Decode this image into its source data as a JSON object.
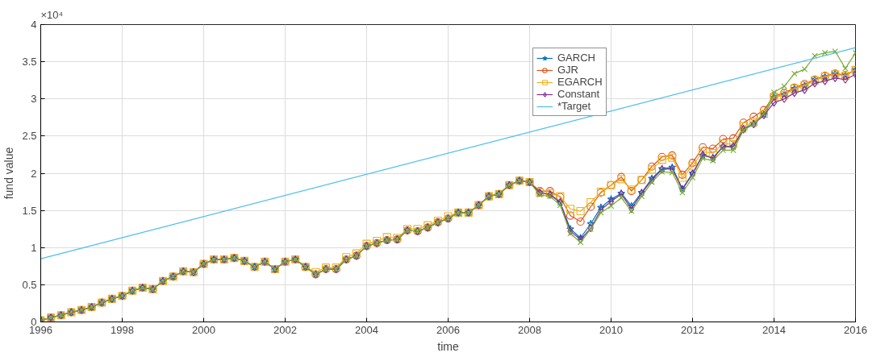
{
  "chart_data": {
    "type": "line",
    "xlabel": "time",
    "ylabel": "fund value",
    "annotations": [
      "×10⁴"
    ],
    "x": [
      1996,
      1996.25,
      1996.5,
      1996.75,
      1997,
      1997.25,
      1997.5,
      1997.75,
      1998,
      1998.25,
      1998.5,
      1998.75,
      1999,
      1999.25,
      1999.5,
      1999.75,
      2000,
      2000.25,
      2000.5,
      2000.75,
      2001,
      2001.25,
      2001.5,
      2001.75,
      2002,
      2002.25,
      2002.5,
      2002.75,
      2003,
      2003.25,
      2003.5,
      2003.75,
      2004,
      2004.25,
      2004.5,
      2004.75,
      2005,
      2005.25,
      2005.5,
      2005.75,
      2006,
      2006.25,
      2006.5,
      2006.75,
      2007,
      2007.25,
      2007.5,
      2007.75,
      2008,
      2008.25,
      2008.5,
      2008.75,
      2009,
      2009.25,
      2009.5,
      2009.75,
      2010,
      2010.25,
      2010.5,
      2010.75,
      2011,
      2011.25,
      2011.5,
      2011.75,
      2012,
      2012.25,
      2012.5,
      2012.75,
      2013,
      2013.25,
      2013.5,
      2013.75,
      2014,
      2014.25,
      2014.5,
      2014.75,
      2015,
      2015.25,
      2015.5,
      2015.75,
      2016
    ],
    "series": [
      {
        "name": "GARCH",
        "color": "#0072bd",
        "marker": "star",
        "values": [
          0.02,
          0.06,
          0.09,
          0.13,
          0.16,
          0.2,
          0.26,
          0.31,
          0.35,
          0.42,
          0.46,
          0.44,
          0.55,
          0.61,
          0.68,
          0.67,
          0.78,
          0.84,
          0.84,
          0.86,
          0.82,
          0.74,
          0.81,
          0.71,
          0.81,
          0.84,
          0.74,
          0.64,
          0.71,
          0.71,
          0.84,
          0.89,
          1.02,
          1.06,
          1.1,
          1.11,
          1.23,
          1.22,
          1.27,
          1.34,
          1.39,
          1.47,
          1.47,
          1.57,
          1.69,
          1.72,
          1.84,
          1.9,
          1.88,
          1.74,
          1.72,
          1.61,
          1.25,
          1.13,
          1.32,
          1.54,
          1.65,
          1.73,
          1.56,
          1.74,
          1.93,
          2.06,
          2.08,
          1.79,
          2,
          2.24,
          2.21,
          2.36,
          2.36,
          2.6,
          2.67,
          2.79,
          3.02,
          3.06,
          3.14,
          3.18,
          3.26,
          3.3,
          3.34,
          3.32,
          3.39
        ]
      },
      {
        "name": "GJR",
        "color": "#d95319",
        "marker": "circle",
        "values": [
          0.02,
          0.06,
          0.09,
          0.13,
          0.16,
          0.2,
          0.26,
          0.31,
          0.35,
          0.42,
          0.46,
          0.44,
          0.55,
          0.61,
          0.68,
          0.67,
          0.78,
          0.84,
          0.84,
          0.86,
          0.82,
          0.74,
          0.81,
          0.71,
          0.81,
          0.84,
          0.74,
          0.64,
          0.71,
          0.71,
          0.84,
          0.89,
          1.02,
          1.06,
          1.1,
          1.11,
          1.23,
          1.22,
          1.27,
          1.34,
          1.39,
          1.47,
          1.47,
          1.57,
          1.69,
          1.72,
          1.84,
          1.9,
          1.88,
          1.76,
          1.76,
          1.68,
          1.43,
          1.35,
          1.55,
          1.74,
          1.84,
          1.95,
          1.76,
          1.91,
          2.09,
          2.22,
          2.24,
          1.98,
          2.14,
          2.35,
          2.33,
          2.46,
          2.47,
          2.68,
          2.76,
          2.85,
          3.04,
          3.08,
          3.15,
          3.2,
          3.26,
          3.31,
          3.34,
          3.32,
          3.39
        ]
      },
      {
        "name": "EGARCH",
        "color": "#edb120",
        "marker": "square",
        "values": [
          0.02,
          0.06,
          0.09,
          0.13,
          0.16,
          0.2,
          0.26,
          0.31,
          0.35,
          0.42,
          0.46,
          0.44,
          0.55,
          0.61,
          0.68,
          0.67,
          0.78,
          0.84,
          0.84,
          0.86,
          0.82,
          0.74,
          0.81,
          0.71,
          0.81,
          0.84,
          0.74,
          0.67,
          0.73,
          0.73,
          0.87,
          0.92,
          1.05,
          1.09,
          1.14,
          1.13,
          1.25,
          1.25,
          1.3,
          1.36,
          1.42,
          1.47,
          1.47,
          1.57,
          1.69,
          1.72,
          1.84,
          1.9,
          1.88,
          1.74,
          1.73,
          1.69,
          1.52,
          1.49,
          1.61,
          1.75,
          1.84,
          1.92,
          1.78,
          1.91,
          2.05,
          2.18,
          2.21,
          1.94,
          2.1,
          2.29,
          2.27,
          2.4,
          2.39,
          2.63,
          2.69,
          2.8,
          3.03,
          3.05,
          3.14,
          3.18,
          3.25,
          3.3,
          3.33,
          3.31,
          3.39
        ]
      },
      {
        "name": "Constant",
        "color": "#7e2f8e",
        "marker": "diamond",
        "values": [
          0.02,
          0.06,
          0.09,
          0.13,
          0.16,
          0.2,
          0.26,
          0.31,
          0.35,
          0.42,
          0.46,
          0.44,
          0.55,
          0.61,
          0.68,
          0.67,
          0.78,
          0.84,
          0.84,
          0.86,
          0.82,
          0.74,
          0.81,
          0.71,
          0.81,
          0.84,
          0.74,
          0.64,
          0.71,
          0.71,
          0.84,
          0.89,
          1.02,
          1.06,
          1.1,
          1.11,
          1.23,
          1.22,
          1.27,
          1.34,
          1.39,
          1.47,
          1.47,
          1.57,
          1.69,
          1.72,
          1.84,
          1.9,
          1.88,
          1.74,
          1.71,
          1.61,
          1.22,
          1.11,
          1.26,
          1.51,
          1.62,
          1.72,
          1.52,
          1.73,
          1.91,
          2.05,
          2.06,
          1.78,
          1.99,
          2.25,
          2.2,
          2.36,
          2.36,
          2.59,
          2.66,
          2.78,
          2.95,
          3,
          3.08,
          3.12,
          3.21,
          3.24,
          3.28,
          3.26,
          3.33
        ]
      },
      {
        "color": "#77ac30",
        "marker": "cross",
        "values": [
          0.02,
          0.06,
          0.09,
          0.13,
          0.16,
          0.2,
          0.26,
          0.31,
          0.35,
          0.42,
          0.46,
          0.44,
          0.55,
          0.61,
          0.68,
          0.67,
          0.78,
          0.84,
          0.84,
          0.86,
          0.82,
          0.74,
          0.81,
          0.71,
          0.81,
          0.84,
          0.74,
          0.64,
          0.71,
          0.71,
          0.84,
          0.89,
          1.02,
          1.06,
          1.1,
          1.11,
          1.23,
          1.22,
          1.27,
          1.34,
          1.39,
          1.47,
          1.47,
          1.57,
          1.69,
          1.72,
          1.84,
          1.9,
          1.88,
          1.71,
          1.69,
          1.57,
          1.19,
          1.07,
          1.25,
          1.47,
          1.56,
          1.67,
          1.49,
          1.69,
          1.88,
          2.02,
          2.01,
          1.74,
          1.94,
          2.2,
          2.17,
          2.31,
          2.31,
          2.58,
          2.66,
          2.8,
          3.09,
          3.17,
          3.34,
          3.4,
          3.58,
          3.62,
          3.64,
          3.41,
          3.62
        ]
      },
      {
        "name": "*Target",
        "color": "#4dbeee",
        "marker": "none",
        "x": [
          1996,
          2016
        ],
        "values": [
          0.85,
          3.69
        ]
      }
    ],
    "xlim": [
      1996,
      2016
    ],
    "xticks": [
      1996,
      1998,
      2000,
      2002,
      2004,
      2006,
      2008,
      2010,
      2012,
      2014,
      2016
    ],
    "ylim": [
      0,
      4
    ],
    "yticks": [
      0,
      0.5,
      1,
      1.5,
      2,
      2.5,
      3,
      3.5,
      4
    ],
    "grid": true,
    "legend": "top right"
  }
}
